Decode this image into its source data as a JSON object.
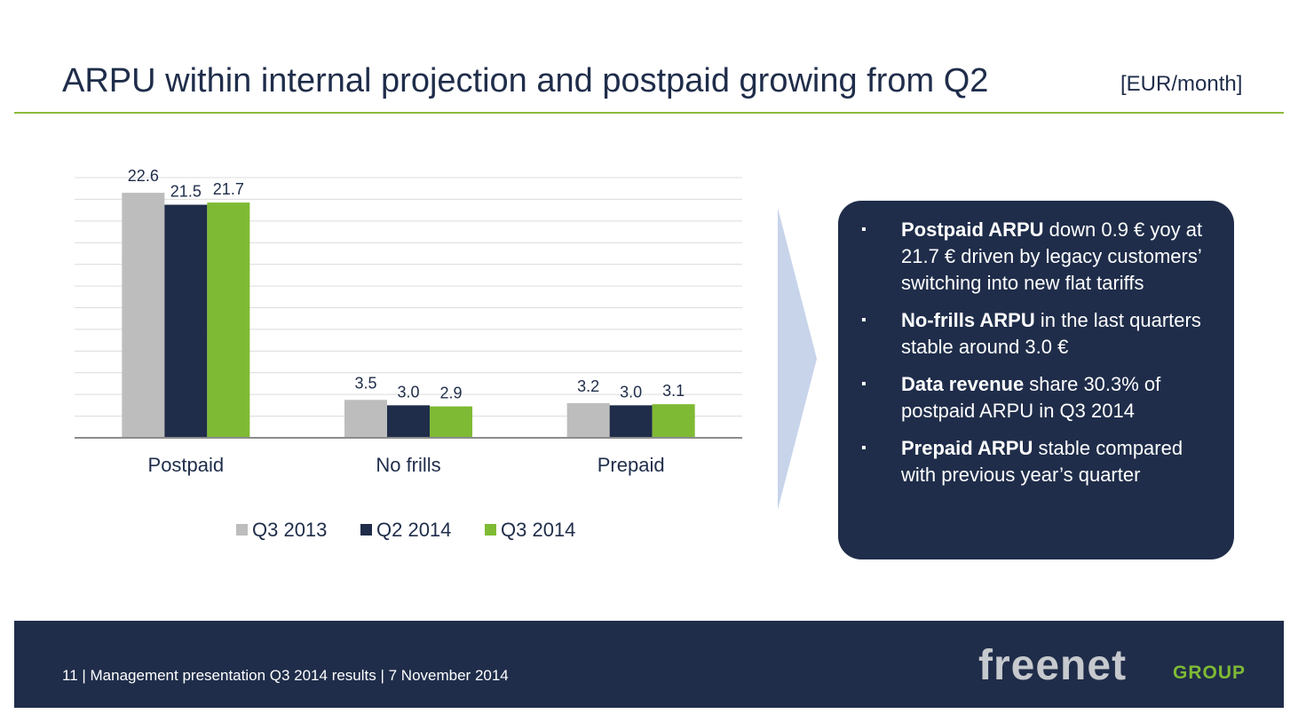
{
  "title": "ARPU within internal projection and postpaid growing from Q2",
  "unit_label": "[EUR/month]",
  "colors": {
    "navy": "#1f2d4a",
    "green": "#7fba34",
    "gray": "#bdbdbd",
    "arrow": "#c7d4ea",
    "logo_gray": "#c6c9cd",
    "logo_green": "#7fba34"
  },
  "chart_data": {
    "type": "bar",
    "title": "",
    "xlabel": "",
    "ylabel": "",
    "ylim": [
      0,
      24
    ],
    "grid": true,
    "legend_position": "bottom",
    "categories": [
      "Postpaid",
      "No frills",
      "Prepaid"
    ],
    "series": [
      {
        "name": "Q3 2013",
        "color": "#bdbdbd",
        "values": [
          22.6,
          3.5,
          3.2
        ],
        "labels": [
          "22.6",
          "3.5",
          "3.2"
        ]
      },
      {
        "name": "Q2 2014",
        "color": "#1f2d4a",
        "values": [
          21.5,
          3.0,
          3.0
        ],
        "labels": [
          "21.5",
          "3.0",
          "3.0"
        ]
      },
      {
        "name": "Q3 2014",
        "color": "#7fba34",
        "values": [
          21.7,
          2.9,
          3.1
        ],
        "labels": [
          "21.7",
          "2.9",
          "3.1"
        ]
      }
    ]
  },
  "bullets": [
    {
      "bold": "Postpaid ARPU",
      "text": " down 0.9 € yoy at 21.7 € driven by legacy customers’ switching into new flat tariffs"
    },
    {
      "bold": "No-frills ARPU",
      "text": " in the last quarters stable around 3.0 €"
    },
    {
      "bold": "Data revenue",
      "text": " share 30.3% of postpaid ARPU in Q3 2014"
    },
    {
      "bold": "Prepaid ARPU",
      "text": " stable compared with previous year’s quarter"
    }
  ],
  "bullet_symbol": "▪",
  "footer": {
    "text": "11  |  Management presentation Q3 2014 results |  7 November 2014",
    "logo_main": "freenet",
    "logo_sub": "GROUP"
  }
}
